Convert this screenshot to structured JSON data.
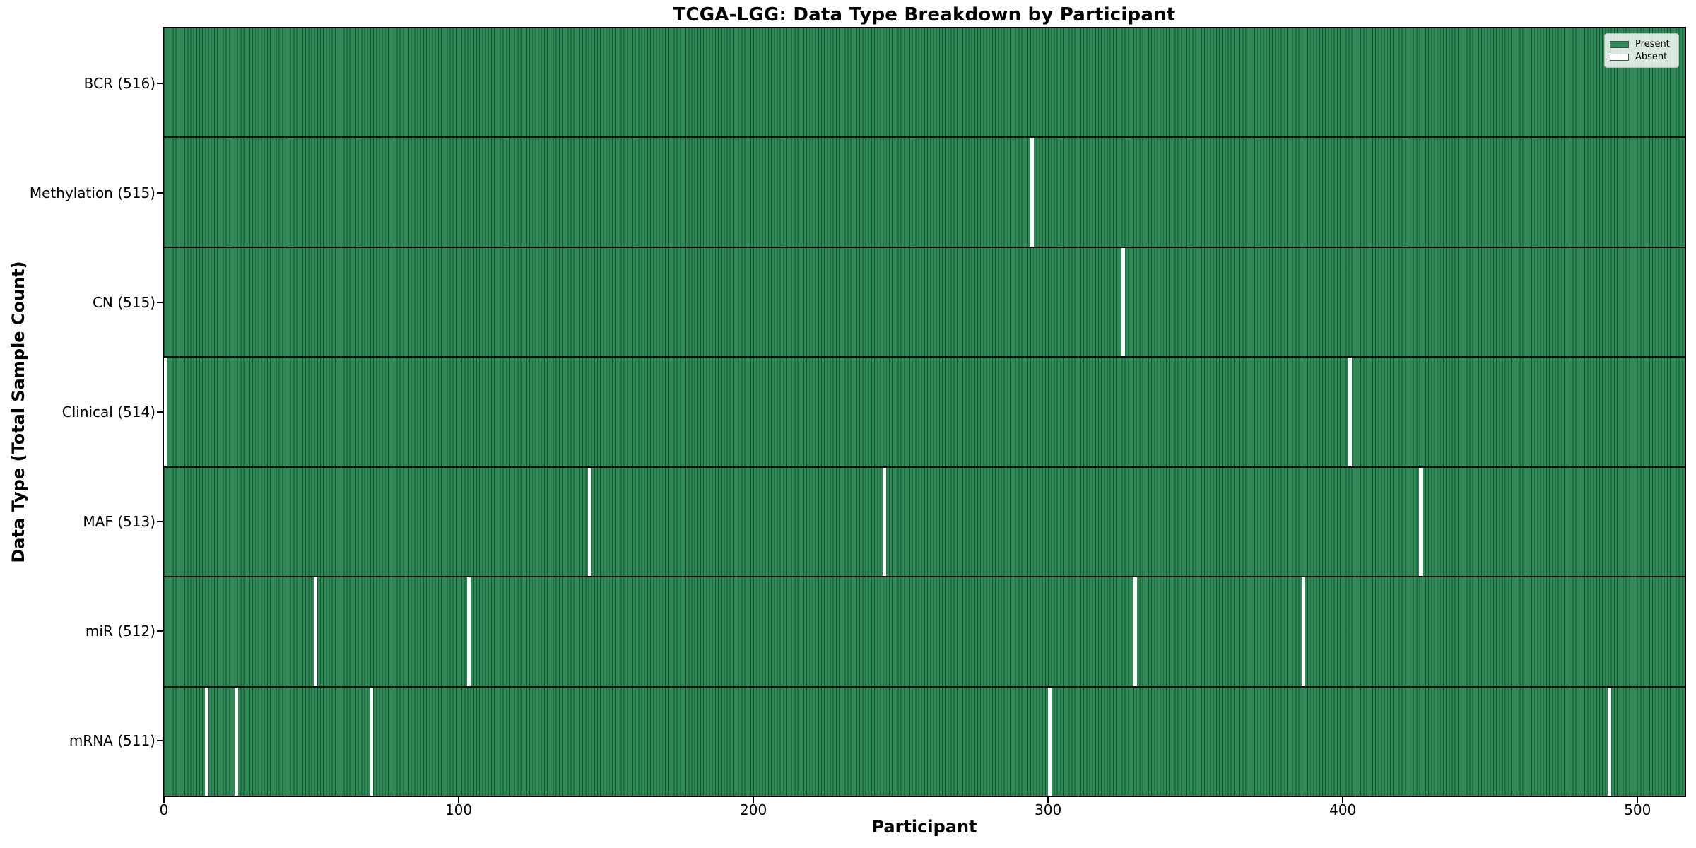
{
  "chart_data": {
    "type": "heatmap",
    "title": "TCGA-LGG: Data Type Breakdown by Participant",
    "xlabel": "Participant",
    "ylabel": "Data Type (Total Sample Count)",
    "n_participants": 516,
    "x_ticks": [
      0,
      100,
      200,
      300,
      400,
      500
    ],
    "x_range": [
      0,
      516
    ],
    "grid": false,
    "legend_position": "top-right",
    "legend": {
      "entries": [
        {
          "label": "Present",
          "color": "#2e8b57"
        },
        {
          "label": "Absent",
          "color": "#ffffff"
        }
      ]
    },
    "colors": {
      "present": "#2e8b57",
      "absent": "#ffffff",
      "cell_edge": "rgba(10,30,20,0.55)",
      "row_separator": "#0a0a0a"
    },
    "rows": [
      {
        "name": "BCR",
        "label": "BCR (516)",
        "total": 516,
        "absent_participants": []
      },
      {
        "name": "Methylation",
        "label": "Methylation (515)",
        "total": 515,
        "absent_participants": [
          294
        ]
      },
      {
        "name": "CN",
        "label": "CN (515)",
        "total": 515,
        "absent_participants": [
          325
        ]
      },
      {
        "name": "Clinical",
        "label": "Clinical (514)",
        "total": 514,
        "absent_participants": [
          0,
          402
        ]
      },
      {
        "name": "MAF",
        "label": "MAF (513)",
        "total": 513,
        "absent_participants": [
          144,
          244,
          426
        ]
      },
      {
        "name": "miR",
        "label": "miR (512)",
        "total": 512,
        "absent_participants": [
          51,
          103,
          329,
          386
        ]
      },
      {
        "name": "mRNA",
        "label": "mRNA (511)",
        "total": 511,
        "absent_participants": [
          14,
          24,
          70,
          300,
          490
        ]
      }
    ]
  }
}
